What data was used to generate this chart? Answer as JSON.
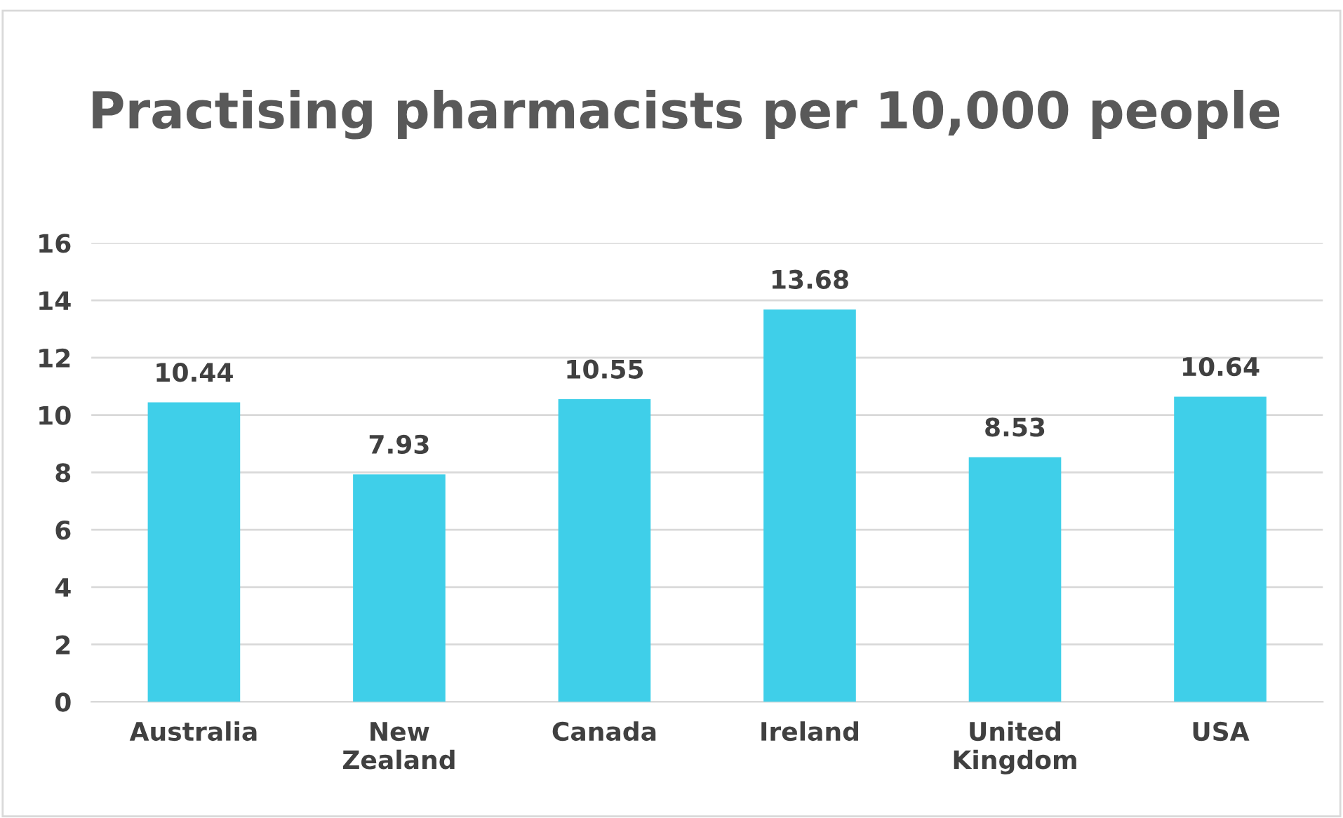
{
  "chart_data": {
    "type": "bar",
    "title": "Practising pharmacists per 10,000 people",
    "categories": [
      "Australia",
      "New Zealand",
      "Canada",
      "Ireland",
      "United Kingdom",
      "USA"
    ],
    "values": [
      10.44,
      7.93,
      10.55,
      13.68,
      8.53,
      10.64
    ],
    "color": "#3fcfe9",
    "ylim": [
      0,
      16
    ],
    "yticks": [
      0,
      2,
      4,
      6,
      8,
      10,
      12,
      14,
      16
    ],
    "grid": "y",
    "data_labels": true
  }
}
